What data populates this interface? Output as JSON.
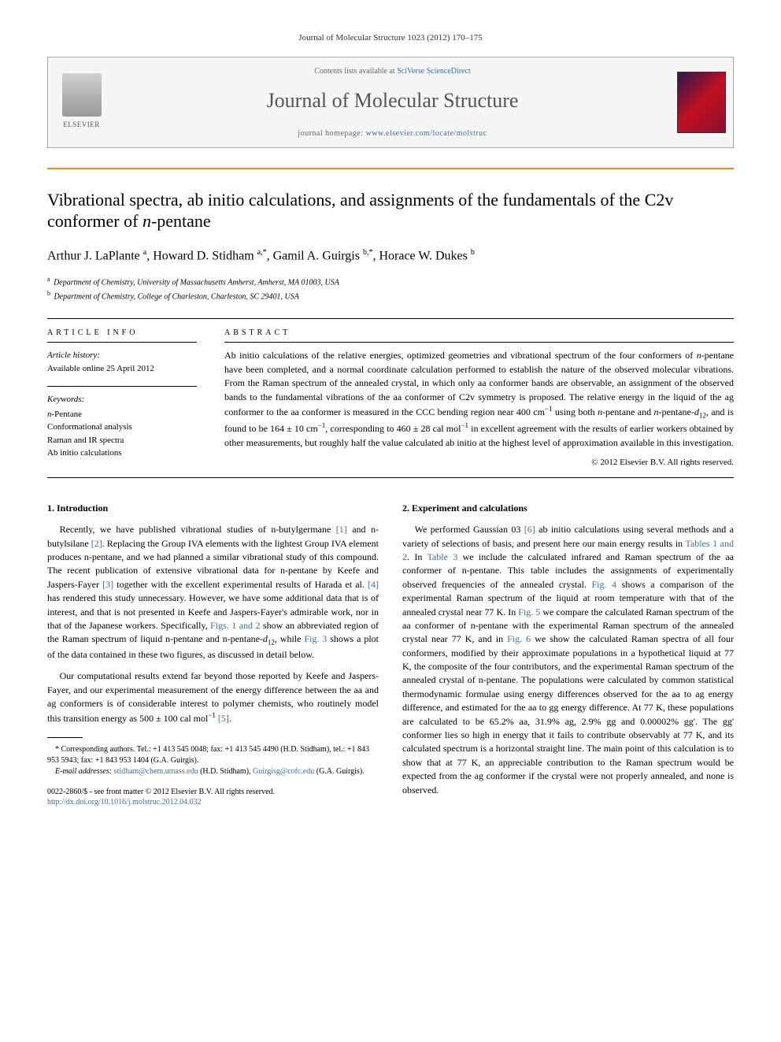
{
  "journal_ref": "Journal of Molecular Structure 1023 (2012) 170–175",
  "header": {
    "contents_pre": "Contents lists available at ",
    "contents_link": "SciVerse ScienceDirect",
    "journal_name": "Journal of Molecular Structure",
    "homepage_pre": "journal homepage: ",
    "homepage_link": "www.elsevier.com/locate/molstruc",
    "publisher": "ELSEVIER",
    "cover_text": "MOLECULAR STRUCTURE"
  },
  "title_main": "Vibrational spectra, ab initio calculations, and assignments of the fundamentals of the C2v conformer of ",
  "title_italic": "n",
  "title_tail": "-pentane",
  "authors_html": "Arthur J. LaPlante <sup>a</sup>, Howard D. Stidham <sup>a,*</sup>, Gamil A. Guirgis <sup>b,*</sup>, Horace W. Dukes <sup>b</sup>",
  "affiliations": [
    {
      "sup": "a",
      "text": "Department of Chemistry, University of Massachusetts Amherst, Amherst, MA 01003, USA"
    },
    {
      "sup": "b",
      "text": "Department of Chemistry, College of Charleston, Charleston, SC 29401, USA"
    }
  ],
  "info": {
    "heading": "article info",
    "history_label": "Article history:",
    "history_text": "Available online 25 April 2012",
    "kw_label": "Keywords:",
    "keywords": "<span class=\"italic\">n</span>-Pentane<br>Conformational analysis<br>Raman and IR spectra<br>Ab initio calculations"
  },
  "abstract": {
    "heading": "abstract",
    "text": "Ab initio calculations of the relative energies, optimized geometries and vibrational spectrum of the four conformers of <i>n</i>-pentane have been completed, and a normal coordinate calculation performed to establish the nature of the observed molecular vibrations. From the Raman spectrum of the annealed crystal, in which only aa conformer bands are observable, an assignment of the observed bands to the fundamental vibrations of the aa conformer of C2v symmetry is proposed. The relative energy in the liquid of the ag conformer to the aa conformer is measured in the CCC bending region near 400 cm<sup>−1</sup> using both <i>n</i>-pentane and <i>n</i>-pentane-<i>d</i><sub>12</sub>, and is found to be 164 ± 10 cm<sup>−1</sup>, corresponding to 460 ± 28 cal mol<sup>−1</sup> in excellent agreement with the results of earlier workers obtained by other measurements, but roughly half the value calculated ab initio at the highest level of approximation available in this investigation.",
    "copyright": "© 2012 Elsevier B.V. All rights reserved."
  },
  "sections": {
    "intro_heading": "1. Introduction",
    "intro_p1": "Recently, we have published vibrational studies of n-butylgermane <span class=\"link\">[1]</span> and n-butylsilane <span class=\"link\">[2]</span>. Replacing the Group IVA elements with the lightest Group IVA element produces n-pentane, and we had planned a similar vibrational study of this compound. The recent publication of extensive vibrational data for n-pentane by Keefe and Jaspers-Fayer <span class=\"link\">[3]</span> together with the excellent experimental results of Harada et al. <span class=\"link\">[4]</span> has rendered this study unnecessary. However, we have some additional data that is of interest, and that is not presented in Keefe and Jaspers-Fayer's admirable work, nor in that of the Japanese workers. Specifically, <span class=\"link\">Figs. 1 and 2</span> show an abbreviated region of the Raman spectrum of liquid n-pentane and n-pentane-<i>d</i><sub>12</sub>, while <span class=\"link\">Fig. 3</span> shows a plot of the data contained in these two figures, as discussed in detail below.",
    "intro_p2": "Our computational results extend far beyond those reported by Keefe and Jaspers-Fayer, and our experimental measurement of the energy difference between the aa and ag conformers is of considerable interest to polymer chemists, who routinely model this transition energy as 500 ± 100 cal mol<sup>−1</sup> <span class=\"link\">[5]</span>.",
    "exp_heading": "2. Experiment and calculations",
    "exp_p1": "We performed Gaussian 03 <span class=\"link\">[6]</span> ab initio calculations using several methods and a variety of selections of basis, and present here our main energy results in <span class=\"link\">Tables 1 and 2</span>. In <span class=\"link\">Table 3</span> we include the calculated infrared and Raman spectrum of the aa conformer of n-pentane. This table includes the assignments of experimentally observed frequencies of the annealed crystal. <span class=\"link\">Fig. 4</span> shows a comparison of the experimental Raman spectrum of the liquid at room temperature with that of the annealed crystal near 77 K. In <span class=\"link\">Fig. 5</span> we compare the calculated Raman spectrum of the aa conformer of n-pentane with the experimental Raman spectrum of the annealed crystal near 77 K, and in <span class=\"link\">Fig. 6</span> we show the calculated Raman spectra of all four conformers, modified by their approximate populations in a hypothetical liquid at 77 K, the composite of the four contributors, and the experimental Raman spectrum of the annealed crystal of n-pentane. The populations were calculated by common statistical thermodynamic formulae using energy differences observed for the aa to ag energy difference, and estimated for the aa to gg energy difference. At 77 K, these populations are calculated to be 65.2% aa, 31.9% ag, 2.9% gg and 0.00002% gg'. The gg' conformer lies so high in energy that it fails to contribute observably at 77 K, and its calculated spectrum is a horizontal straight line. The main point of this calculation is to show that at 77 K, an appreciable contribution to the Raman spectrum would be expected from the ag conformer if the crystal were not properly annealed, and none is observed."
  },
  "footnotes": {
    "corr": "* Corresponding authors. Tel.: +1 413 545 0048; fax: +1 413 545 4490 (H.D. Stidham), tel.: +1 843 953 5943; fax: +1 843 953 1404 (G.A. Guirgis).",
    "email_label": "E-mail addresses:",
    "email1": "stidham@chem.umass.edu",
    "email1_who": " (H.D. Stidham), ",
    "email2": "Guirgisg@cofc.edu",
    "email2_who": " (G.A. Guirgis)."
  },
  "footer": {
    "issn": "0022-2860/$ - see front matter © 2012 Elsevier B.V. All rights reserved.",
    "doi": "http://dx.doi.org/10.1016/j.molstruc.2012.04.032"
  },
  "colors": {
    "accent_orange": "#e98c1e",
    "link_blue": "#3a6fa8"
  }
}
